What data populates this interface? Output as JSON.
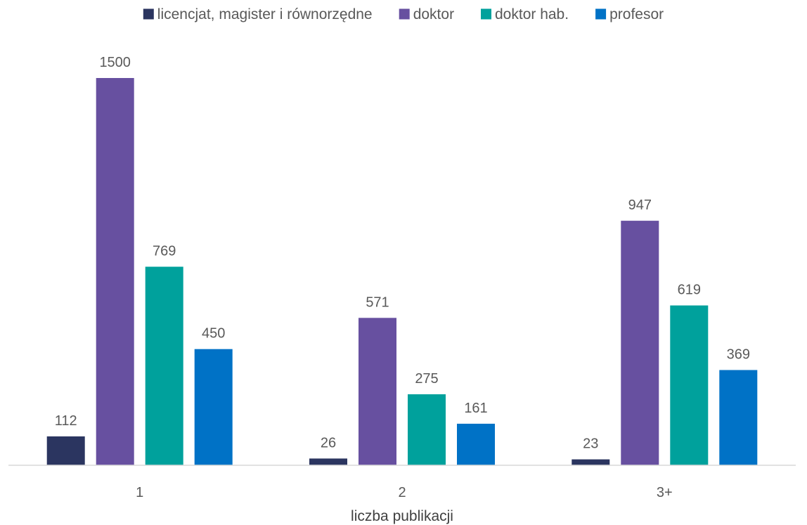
{
  "chart_data": {
    "type": "bar",
    "title": "",
    "xlabel": "liczba publikacji",
    "ylabel": "",
    "categories": [
      "1",
      "2",
      "3+"
    ],
    "series": [
      {
        "name": "licencjat, magister i równorzędne",
        "color": "#2B3560",
        "values": [
          112,
          26,
          23
        ]
      },
      {
        "name": "doktor",
        "color": "#6750A0",
        "values": [
          1500,
          571,
          947
        ]
      },
      {
        "name": "doktor hab.",
        "color": "#00A19C",
        "values": [
          769,
          275,
          619
        ]
      },
      {
        "name": "profesor",
        "color": "#0072C6",
        "values": [
          450,
          161,
          369
        ]
      }
    ],
    "ylim": [
      0,
      1500
    ],
    "grid": false,
    "legend_position": "top",
    "data_labels": true
  }
}
